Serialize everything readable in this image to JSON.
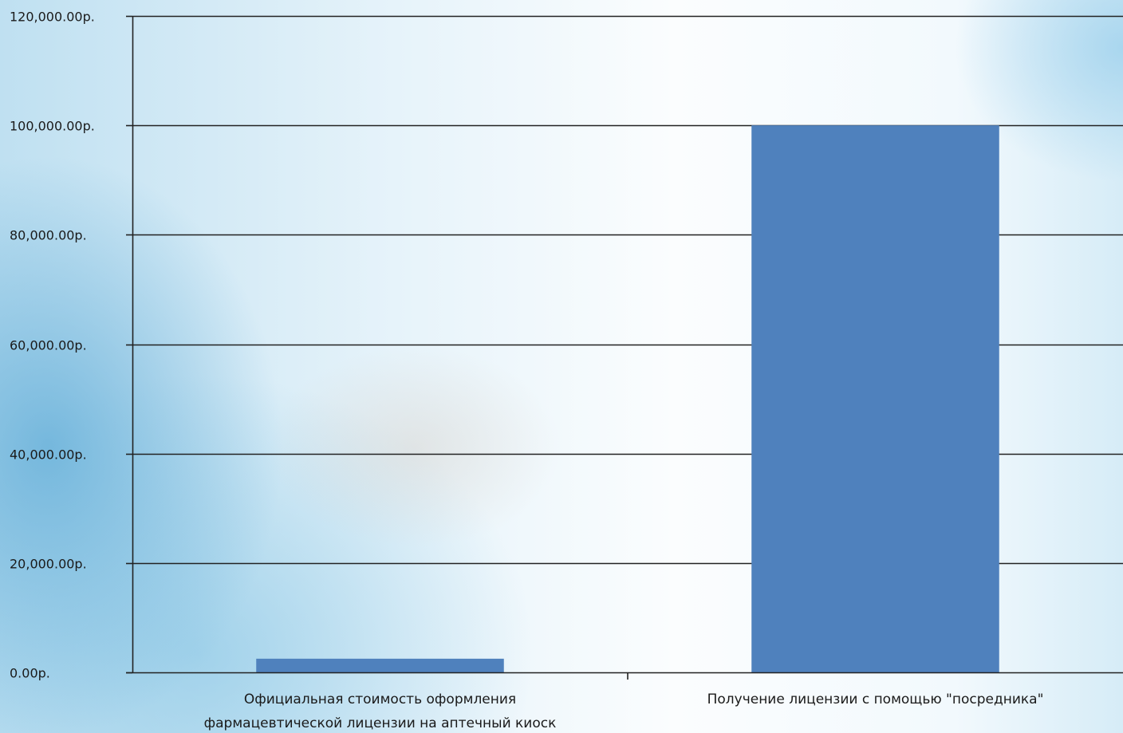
{
  "chart_data": {
    "type": "bar",
    "categories": [
      [
        "Официальная стоимость оформления",
        "фармацевтической лицензии на аптечный киоск"
      ],
      [
        "Получение лицензии с помощью \"посредника\""
      ]
    ],
    "values": [
      2500,
      100000
    ],
    "ylim": [
      0,
      120000
    ],
    "y_ticks": [
      0,
      20000,
      40000,
      60000,
      80000,
      100000,
      120000
    ],
    "y_tick_labels": [
      "0.00р.",
      "20,000.00р.",
      "40,000.00р.",
      "60,000.00р.",
      "80,000.00р.",
      "100,000.00р.",
      "120,000.00р."
    ],
    "grid": true,
    "legend": "none",
    "title": "",
    "xlabel": "",
    "ylabel": "",
    "bar_color": "#4f81bd"
  }
}
